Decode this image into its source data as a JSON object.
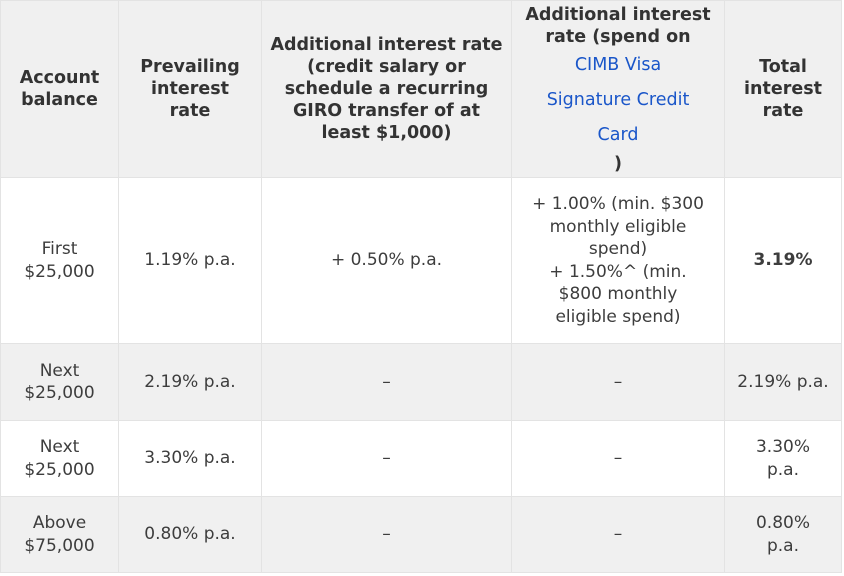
{
  "table": {
    "headers": {
      "account_balance": "Account balance",
      "prevailing_rate": "Prevailing interest rate",
      "additional_salary": "Additional interest rate (credit salary or schedule a recurring GIRO transfer of at least $1,000)",
      "additional_spend_prefix": "Additional interest rate (spend on",
      "additional_spend_link": "CIMB Visa Signature Credit Card",
      "additional_spend_suffix": ")",
      "total_rate": "Total interest rate"
    },
    "rows": [
      {
        "balance": "First $25,000",
        "prevailing": "1.19% p.a.",
        "salary": "+ 0.50% p.a.",
        "spend_1": "+ 1.00% (min. $300 monthly eligible spend)",
        "spend_2": "+ 1.50%^ (min. $800 monthly eligible spend)",
        "total": "3.19%"
      },
      {
        "balance": "Next $25,000",
        "prevailing": "2.19% p.a.",
        "salary": "–",
        "spend": "–",
        "total": "2.19% p.a."
      },
      {
        "balance": "Next $25,000",
        "prevailing": "3.30% p.a.",
        "salary": "–",
        "spend": "–",
        "total": "3.30% p.a."
      },
      {
        "balance": "Above $75,000",
        "prevailing": "0.80% p.a.",
        "salary": "–",
        "spend": "–",
        "total": "0.80% p.a."
      }
    ]
  },
  "colors": {
    "header_bg": "#f0f0f0",
    "link": "#1a56c9",
    "border": "#e3e3e3"
  }
}
